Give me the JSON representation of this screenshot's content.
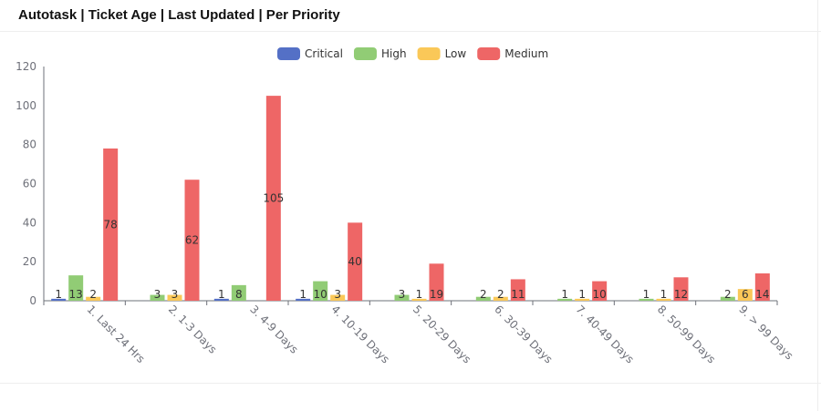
{
  "title": "Autotask | Ticket Age | Last Updated | Per Priority",
  "chart_data": {
    "type": "bar",
    "categories": [
      "1. Last 24 Hrs",
      "2. 1-3 Days",
      "3. 4-9 Days",
      "4. 10-19 Days",
      "5. 20-29 Days",
      "6. 30-39 Days",
      "7. 40-49 Days",
      "8. 50-99 Days",
      "9. > 99 Days"
    ],
    "series": [
      {
        "name": "Critical",
        "color": "#5470c6",
        "values": [
          1,
          null,
          1,
          1,
          null,
          null,
          null,
          null,
          null
        ]
      },
      {
        "name": "High",
        "color": "#91cc75",
        "values": [
          13,
          3,
          8,
          10,
          3,
          2,
          1,
          1,
          2
        ]
      },
      {
        "name": "Low",
        "color": "#fac858",
        "values": [
          2,
          3,
          null,
          3,
          1,
          2,
          1,
          1,
          6
        ]
      },
      {
        "name": "Medium",
        "color": "#ee6666",
        "values": [
          78,
          62,
          105,
          40,
          19,
          11,
          10,
          12,
          14
        ]
      }
    ],
    "ylim": [
      0,
      120
    ],
    "yticks": [
      0,
      20,
      40,
      60,
      80,
      100,
      120
    ],
    "legend": "top-center",
    "grid": false,
    "data_labels": true
  }
}
